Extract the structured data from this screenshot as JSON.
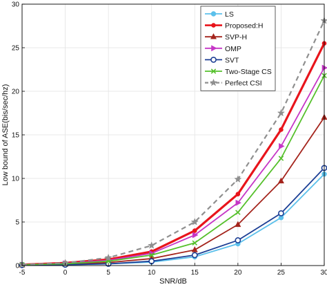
{
  "chart_data": {
    "type": "line",
    "xlabel": "SNR/dB",
    "ylabel": "Low bound of ASE(bis/sec/hz)",
    "xlim": [
      -5,
      30
    ],
    "ylim": [
      0,
      30
    ],
    "xticks": [
      -5,
      0,
      5,
      10,
      15,
      20,
      25,
      30
    ],
    "yticks": [
      0,
      5,
      10,
      15,
      20,
      25,
      30
    ],
    "xtick_labels": [
      "-5",
      "0",
      "5",
      "10",
      "15",
      "20",
      "25",
      "30"
    ],
    "ytick_labels": [
      "0",
      "5",
      "10",
      "15",
      "20",
      "25",
      "30"
    ],
    "grid": true,
    "legend_position": "top-right",
    "x": [
      -5,
      0,
      5,
      10,
      15,
      20,
      25,
      30
    ],
    "series": [
      {
        "name": "LS",
        "color": "#5bc0eb",
        "marker": "circle-filled",
        "dash": "solid",
        "width": 1.8,
        "values": [
          0.05,
          0.1,
          0.2,
          0.4,
          1.0,
          2.5,
          5.5,
          10.5
        ]
      },
      {
        "name": "Proposed:H",
        "color": "#e8141b",
        "marker": "dot",
        "dash": "solid",
        "width": 3.2,
        "values": [
          0.1,
          0.3,
          0.7,
          1.6,
          4.0,
          8.2,
          15.6,
          25.5
        ]
      },
      {
        "name": "SVP-H",
        "color": "#a4241c",
        "marker": "triangle-up",
        "dash": "solid",
        "width": 1.8,
        "values": [
          0.05,
          0.15,
          0.35,
          0.8,
          1.8,
          4.7,
          9.7,
          17.0
        ]
      },
      {
        "name": "OMP",
        "color": "#c536c6",
        "marker": "triangle-right",
        "dash": "solid",
        "width": 1.8,
        "values": [
          0.1,
          0.25,
          0.6,
          1.4,
          3.5,
          7.2,
          13.7,
          22.7
        ]
      },
      {
        "name": "SVT",
        "color": "#1c3e94",
        "marker": "circle-open",
        "dash": "solid",
        "width": 1.8,
        "values": [
          0.05,
          0.1,
          0.2,
          0.5,
          1.2,
          2.9,
          6.0,
          11.2
        ]
      },
      {
        "name": "Two-Stage CS",
        "color": "#55c02b",
        "marker": "x",
        "dash": "solid",
        "width": 1.8,
        "values": [
          0.1,
          0.2,
          0.5,
          1.2,
          2.6,
          6.1,
          12.3,
          21.8
        ]
      },
      {
        "name": "Perfect CSI",
        "color": "#8f8f8f",
        "marker": "star",
        "dash": "dashed",
        "width": 2.2,
        "values": [
          0.1,
          0.3,
          0.9,
          2.3,
          5.0,
          9.9,
          17.5,
          28.1
        ]
      }
    ]
  }
}
